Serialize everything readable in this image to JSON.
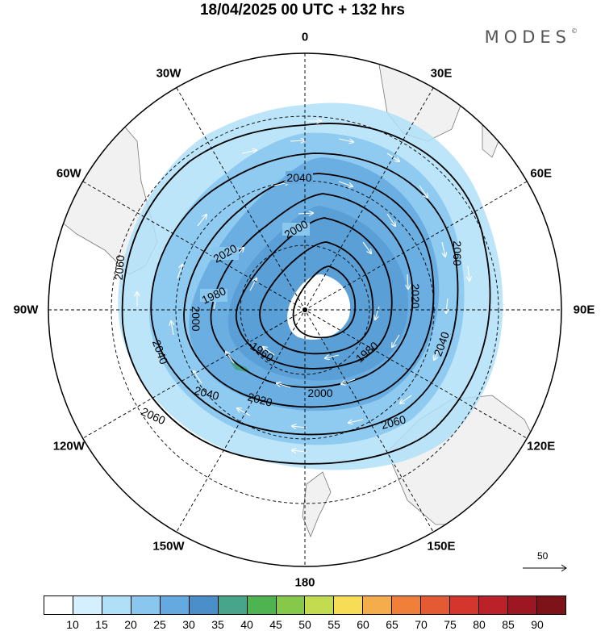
{
  "title": "18/04/2025  00 UTC  + 132 hrs",
  "brand": "MODES",
  "brand_mark": "©",
  "longitude_labels": [
    {
      "text": "0",
      "lon": 0
    },
    {
      "text": "30E",
      "lon": 30
    },
    {
      "text": "60E",
      "lon": 60
    },
    {
      "text": "90E",
      "lon": 90
    },
    {
      "text": "120E",
      "lon": 120
    },
    {
      "text": "150E",
      "lon": 150
    },
    {
      "text": "180",
      "lon": 180
    },
    {
      "text": "150W",
      "lon": -150
    },
    {
      "text": "120W",
      "lon": -120
    },
    {
      "text": "90W",
      "lon": -90
    },
    {
      "text": "60W",
      "lon": -60
    },
    {
      "text": "30W",
      "lon": -30
    }
  ],
  "contour_labels": [
    "1960",
    "1980",
    "2000",
    "2020",
    "2040",
    "2060"
  ],
  "reference_vector": {
    "label": "50"
  },
  "colorbar": {
    "ticks": [
      "10",
      "15",
      "20",
      "25",
      "30",
      "35",
      "40",
      "45",
      "50",
      "55",
      "60",
      "65",
      "70",
      "75",
      "80",
      "85",
      "90"
    ],
    "colors": [
      "#ffffff",
      "#d4effd",
      "#b0e0f8",
      "#8ac7ee",
      "#64a9df",
      "#4a8fc9",
      "#46a58a",
      "#4db44f",
      "#86c84a",
      "#c3dc4f",
      "#f6dd55",
      "#f5ac4a",
      "#f07f3a",
      "#e45a32",
      "#d4362e",
      "#bb2128",
      "#9c1721",
      "#7e1219"
    ]
  }
}
